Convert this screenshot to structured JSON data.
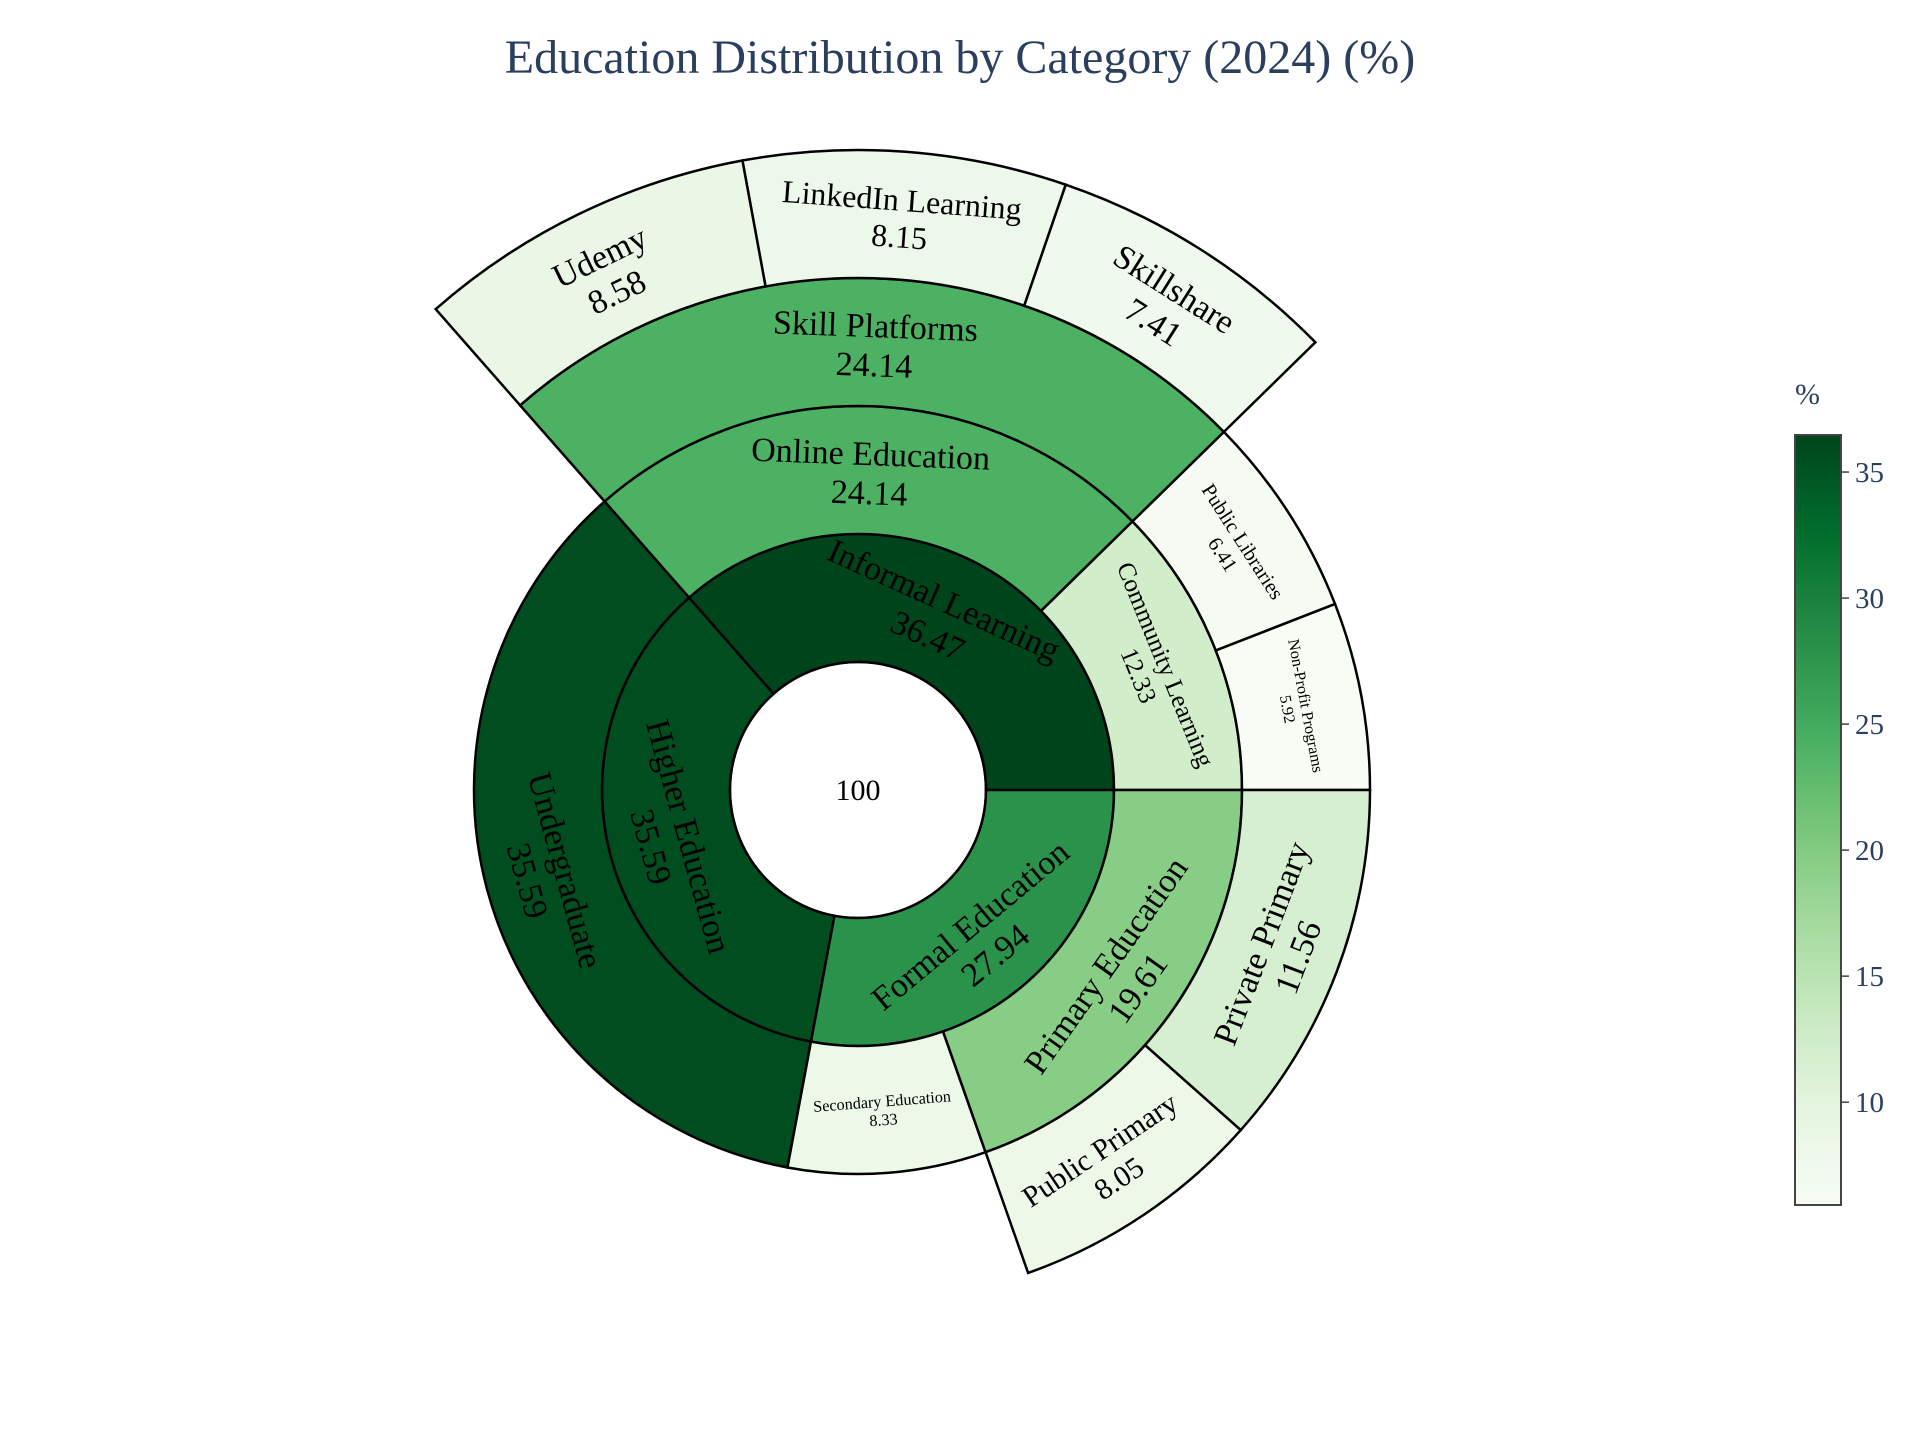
{
  "chart_data": {
    "type": "sunburst",
    "title": "Education Distribution by Category (2024) (%)",
    "root": {
      "label": "",
      "value": 100
    },
    "nodes": [
      {
        "id": "informal",
        "label": "Informal Learning",
        "value": 36.47,
        "parent": "root"
      },
      {
        "id": "higher",
        "label": "Higher Education",
        "value": 35.59,
        "parent": "root"
      },
      {
        "id": "formal",
        "label": "Formal Education",
        "value": 27.94,
        "parent": "root"
      },
      {
        "id": "community",
        "label": "Community Learning",
        "value": 12.33,
        "parent": "informal"
      },
      {
        "id": "online",
        "label": "Online Education",
        "value": 24.14,
        "parent": "informal"
      },
      {
        "id": "undergrad",
        "label": "Undergraduate",
        "value": 35.59,
        "parent": "higher"
      },
      {
        "id": "secondary",
        "label": "Secondary Education",
        "value": 8.33,
        "parent": "formal"
      },
      {
        "id": "primary",
        "label": "Primary Education",
        "value": 19.61,
        "parent": "formal"
      },
      {
        "id": "nonprofit",
        "label": "Non-Profit Programs",
        "value": 5.92,
        "parent": "community"
      },
      {
        "id": "libraries",
        "label": "Public Libraries",
        "value": 6.41,
        "parent": "community"
      },
      {
        "id": "skillplat",
        "label": "Skill Platforms",
        "value": 24.14,
        "parent": "online"
      },
      {
        "id": "publicprim",
        "label": "Public Primary",
        "value": 8.05,
        "parent": "primary"
      },
      {
        "id": "privateprim",
        "label": "Private Primary",
        "value": 11.56,
        "parent": "primary"
      },
      {
        "id": "skillshare",
        "label": "Skillshare",
        "value": 7.41,
        "parent": "skillplat"
      },
      {
        "id": "linkedin",
        "label": "LinkedIn Learning",
        "value": 8.15,
        "parent": "skillplat"
      },
      {
        "id": "udemy",
        "label": "Udemy",
        "value": 8.58,
        "parent": "skillplat"
      }
    ],
    "colorscale": "Greens",
    "color_range": [
      5.92,
      36.47
    ],
    "colorbar": {
      "title": "%",
      "ticks": [
        10,
        15,
        20,
        25,
        30,
        35
      ]
    }
  },
  "colors": {
    "title": "#2a3f5f",
    "stroke": "#000000",
    "greens": [
      "#f7fcf5",
      "#e5f5e0",
      "#c7e9c0",
      "#a1d99b",
      "#74c476",
      "#41ab5d",
      "#238b45",
      "#006d2c",
      "#00441b"
    ]
  }
}
